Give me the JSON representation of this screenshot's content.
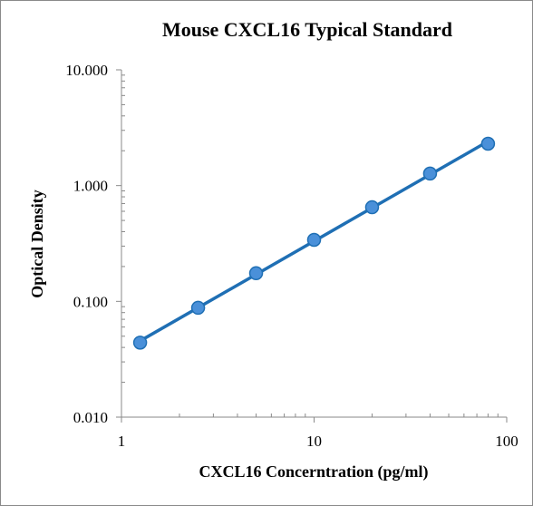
{
  "chart_data": {
    "type": "scatter",
    "title": "Mouse CXCL16 Typical Standard",
    "xlabel": "CXCL16 Concerntration (pg/ml)",
    "ylabel": "Optical Density",
    "x_scale": "log",
    "y_scale": "log",
    "xlim": [
      1,
      100
    ],
    "ylim": [
      0.01,
      10
    ],
    "x_ticks": [
      "1",
      "10",
      "100"
    ],
    "y_ticks": [
      "10.000",
      "1.000",
      "0.100",
      "0.010"
    ],
    "grid": false,
    "legend": "none",
    "series": [
      {
        "x": [
          1.25,
          2.5,
          5,
          10,
          20,
          40,
          80
        ],
        "y": [
          0.044,
          0.088,
          0.175,
          0.34,
          0.65,
          1.27,
          2.3
        ],
        "color": "#1f6fb4",
        "marker_color": "#4a90d9",
        "trendline": true
      }
    ]
  }
}
